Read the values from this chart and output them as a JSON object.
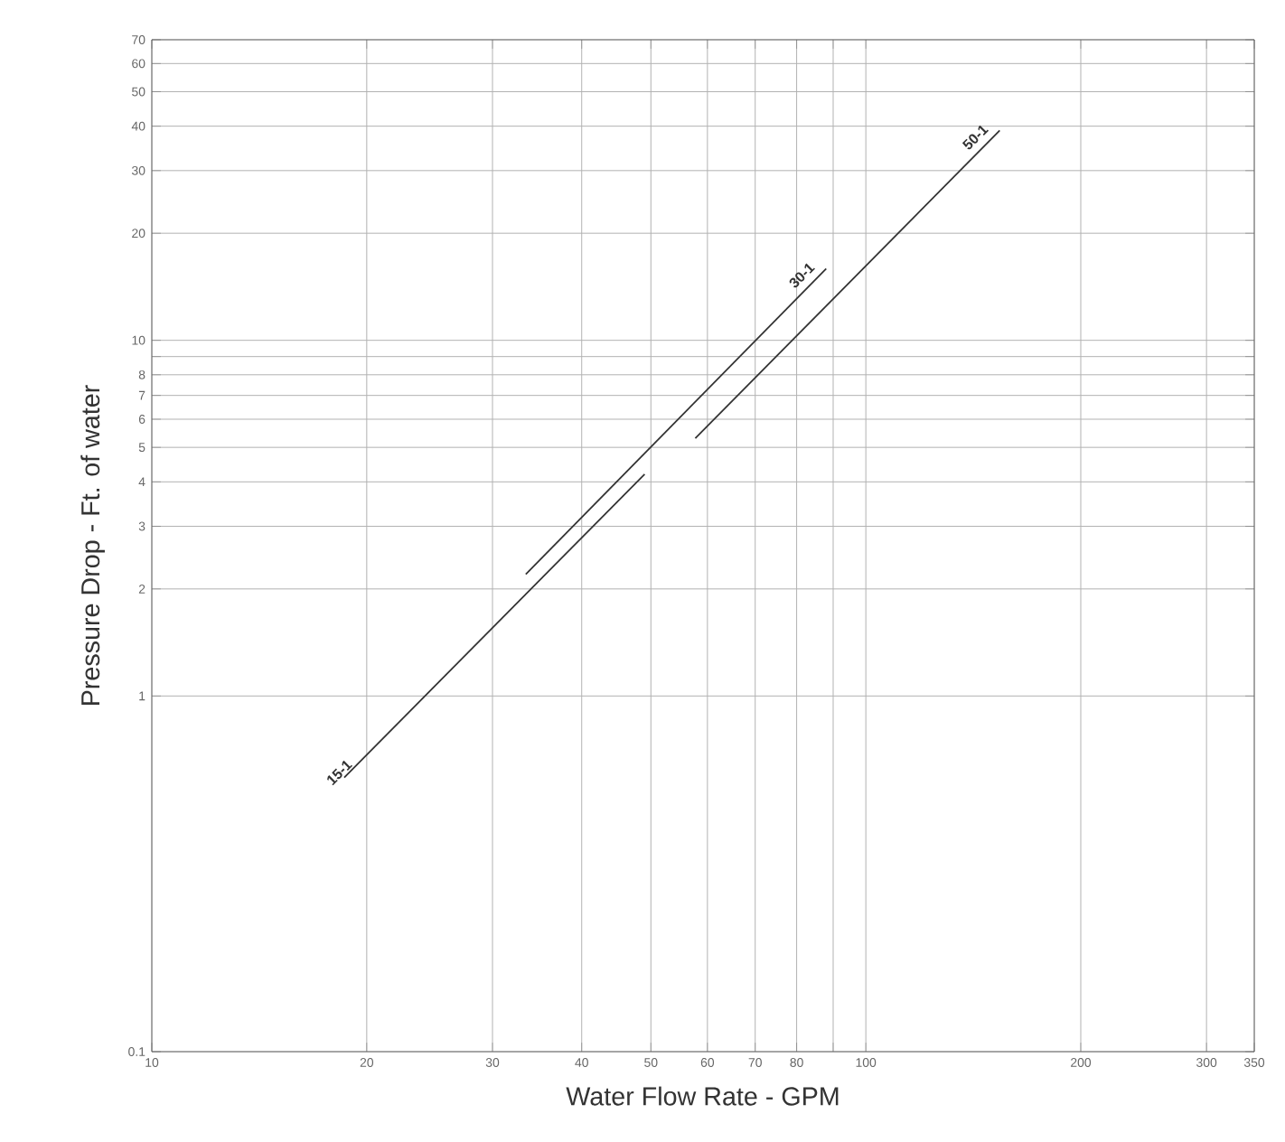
{
  "chart_data": {
    "type": "line",
    "xlabel": "Water Flow Rate - GPM",
    "ylabel": "Pressure Drop - Ft. of water",
    "log": "xy",
    "grid": true,
    "marker": "none",
    "line_style": "solid",
    "xlim": [
      10,
      350
    ],
    "ylim": [
      0.1,
      70
    ],
    "xticks": [
      10,
      20,
      30,
      40,
      50,
      60,
      70,
      80,
      {
        "value": 90,
        "label": null
      },
      100,
      200,
      300,
      350
    ],
    "yticks": [
      0.1,
      1,
      2,
      3,
      4,
      5,
      6,
      7,
      8,
      {
        "value": 9,
        "label": null
      },
      10,
      20,
      30,
      40,
      50,
      60,
      70
    ],
    "series": [
      {
        "name": "15-1",
        "color": "#333333",
        "x": [
          18.6,
          49
        ],
        "values": [
          0.59,
          4.2
        ]
      },
      {
        "name": "30-1",
        "color": "#333333",
        "x": [
          33.4,
          88
        ],
        "values": [
          2.2,
          15.9
        ]
      },
      {
        "name": "50-1",
        "color": "#333333",
        "x": [
          57.7,
          154
        ],
        "values": [
          5.3,
          38.9
        ]
      }
    ]
  }
}
